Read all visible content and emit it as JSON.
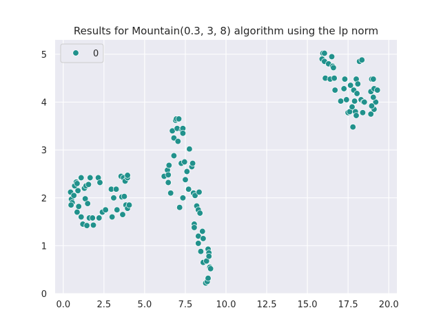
{
  "chart_data": {
    "type": "scatter",
    "title": "Results for Mountain(0.3, 3, 8) algorithm using the lp norm",
    "xlabel": "",
    "ylabel": "",
    "xlim": [
      -0.5,
      20.5
    ],
    "ylim": [
      0,
      5.3
    ],
    "xticks": [
      0.0,
      2.5,
      5.0,
      7.5,
      10.0,
      12.5,
      15.0,
      17.5,
      20.0
    ],
    "xtick_labels": [
      "0.0",
      "2.5",
      "5.0",
      "7.5",
      "10.0",
      "12.5",
      "15.0",
      "17.5",
      "20.0"
    ],
    "yticks": [
      0,
      1,
      2,
      3,
      4,
      5
    ],
    "ytick_labels": [
      "0",
      "1",
      "2",
      "3",
      "4",
      "5"
    ],
    "grid": true,
    "legend": {
      "placement": "top-left",
      "entries": [
        {
          "label": "0",
          "color": "#21918c"
        }
      ]
    },
    "colors": {
      "background": "#eaeaf2",
      "point": "#21918c",
      "point_edge": "#ffffff",
      "grid": "#ffffff"
    },
    "series": [
      {
        "name": "0",
        "points": [
          [
            0.45,
            2.12
          ],
          [
            0.5,
            1.97
          ],
          [
            0.55,
            1.9
          ],
          [
            0.48,
            1.85
          ],
          [
            0.65,
            2.05
          ],
          [
            0.7,
            2.25
          ],
          [
            0.8,
            2.33
          ],
          [
            0.85,
            2.3
          ],
          [
            0.9,
            2.15
          ],
          [
            0.95,
            1.82
          ],
          [
            0.85,
            1.7
          ],
          [
            1.1,
            1.6
          ],
          [
            1.1,
            2.42
          ],
          [
            1.2,
            1.45
          ],
          [
            1.3,
            2.2
          ],
          [
            1.35,
            1.98
          ],
          [
            1.4,
            2.25
          ],
          [
            1.45,
            1.42
          ],
          [
            1.5,
            1.88
          ],
          [
            1.6,
            1.58
          ],
          [
            1.55,
            2.28
          ],
          [
            1.65,
            2.42
          ],
          [
            1.8,
            1.58
          ],
          [
            1.85,
            1.43
          ],
          [
            2.15,
            2.42
          ],
          [
            2.25,
            2.32
          ],
          [
            2.2,
            1.58
          ],
          [
            2.4,
            1.7
          ],
          [
            2.6,
            1.75
          ],
          [
            2.95,
            2.18
          ],
          [
            3.0,
            1.6
          ],
          [
            3.1,
            2.0
          ],
          [
            3.25,
            2.18
          ],
          [
            3.3,
            1.75
          ],
          [
            3.55,
            2.45
          ],
          [
            3.6,
            2.02
          ],
          [
            3.65,
            1.65
          ],
          [
            3.7,
            2.42
          ],
          [
            3.75,
            2.03
          ],
          [
            3.8,
            2.35
          ],
          [
            3.85,
            1.85
          ],
          [
            3.95,
            2.42
          ],
          [
            3.95,
            2.47
          ],
          [
            3.95,
            1.78
          ],
          [
            4.05,
            1.85
          ],
          [
            6.2,
            2.45
          ],
          [
            6.4,
            2.58
          ],
          [
            6.45,
            2.48
          ],
          [
            6.45,
            2.32
          ],
          [
            6.5,
            2.68
          ],
          [
            6.6,
            2.1
          ],
          [
            6.7,
            3.4
          ],
          [
            6.8,
            2.88
          ],
          [
            6.8,
            3.25
          ],
          [
            6.9,
            3.62
          ],
          [
            6.95,
            3.65
          ],
          [
            7.0,
            3.45
          ],
          [
            7.05,
            3.18
          ],
          [
            7.1,
            3.65
          ],
          [
            7.15,
            1.8
          ],
          [
            7.25,
            2.72
          ],
          [
            7.3,
            3.42
          ],
          [
            7.35,
            3.45
          ],
          [
            7.35,
            3.35
          ],
          [
            7.35,
            2.0
          ],
          [
            7.45,
            2.75
          ],
          [
            7.5,
            2.38
          ],
          [
            7.6,
            2.55
          ],
          [
            7.7,
            2.18
          ],
          [
            7.75,
            3.02
          ],
          [
            7.9,
            2.65
          ],
          [
            7.95,
            2.72
          ],
          [
            8.0,
            2.1
          ],
          [
            8.05,
            1.45
          ],
          [
            8.05,
            1.38
          ],
          [
            8.1,
            2.05
          ],
          [
            8.2,
            1.83
          ],
          [
            8.3,
            1.75
          ],
          [
            8.35,
            2.12
          ],
          [
            8.4,
            1.68
          ],
          [
            8.3,
            1.2
          ],
          [
            8.3,
            1.05
          ],
          [
            8.45,
            0.88
          ],
          [
            8.55,
            1.3
          ],
          [
            8.6,
            1.15
          ],
          [
            8.6,
            0.65
          ],
          [
            8.75,
            0.22
          ],
          [
            8.8,
            0.68
          ],
          [
            8.85,
            0.25
          ],
          [
            8.9,
            0.32
          ],
          [
            8.9,
            0.93
          ],
          [
            8.95,
            0.85
          ],
          [
            8.95,
            0.78
          ],
          [
            9.0,
            0.55
          ],
          [
            9.05,
            0.52
          ],
          [
            15.9,
            4.9
          ],
          [
            15.95,
            5.02
          ],
          [
            16.05,
            5.02
          ],
          [
            16.05,
            4.85
          ],
          [
            16.1,
            4.5
          ],
          [
            16.3,
            4.8
          ],
          [
            16.4,
            4.48
          ],
          [
            16.5,
            4.95
          ],
          [
            16.55,
            4.75
          ],
          [
            16.6,
            4.72
          ],
          [
            16.65,
            4.5
          ],
          [
            16.7,
            4.25
          ],
          [
            17.05,
            4.02
          ],
          [
            17.25,
            4.28
          ],
          [
            17.3,
            4.48
          ],
          [
            17.4,
            4.05
          ],
          [
            17.5,
            3.78
          ],
          [
            17.6,
            3.8
          ],
          [
            17.65,
            4.35
          ],
          [
            17.75,
            3.9
          ],
          [
            17.8,
            3.48
          ],
          [
            17.85,
            4.25
          ],
          [
            17.9,
            4.02
          ],
          [
            17.95,
            3.8
          ],
          [
            18.0,
            4.48
          ],
          [
            18.0,
            3.72
          ],
          [
            18.05,
            4.18
          ],
          [
            18.1,
            4.38
          ],
          [
            18.2,
            4.85
          ],
          [
            18.3,
            4.05
          ],
          [
            18.35,
            4.88
          ],
          [
            18.4,
            3.78
          ],
          [
            18.45,
            4.0
          ],
          [
            18.5,
            4.0
          ],
          [
            18.9,
            4.22
          ],
          [
            18.9,
            3.75
          ],
          [
            18.95,
            4.48
          ],
          [
            19.05,
            4.48
          ],
          [
            19.1,
            3.85
          ],
          [
            19.2,
            4.0
          ],
          [
            19.1,
            4.28
          ],
          [
            19.3,
            4.25
          ],
          [
            18.95,
            3.92
          ],
          [
            19.05,
            4.1
          ]
        ]
      }
    ]
  }
}
